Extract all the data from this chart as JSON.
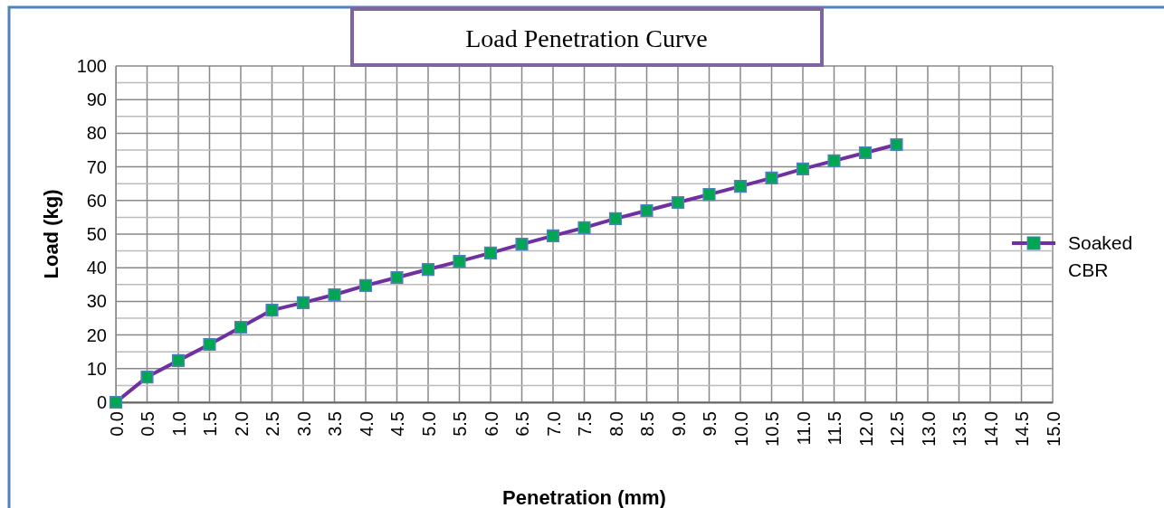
{
  "chart_data": {
    "type": "line",
    "title": "Load Penetration Curve",
    "xlabel": "Penetration (mm)",
    "ylabel": "Load (kg)",
    "x": [
      0,
      0.5,
      1,
      1.5,
      2,
      2.5,
      3,
      3.5,
      4,
      4.5,
      5,
      5.5,
      6,
      6.5,
      7,
      7.5,
      8,
      8.5,
      9,
      9.5,
      10,
      10.5,
      11,
      11.5,
      12,
      12.5
    ],
    "series": [
      {
        "name": "Soaked CBR",
        "color": "#7030a0",
        "values": [
          0,
          7.5,
          12.4,
          17.2,
          22.3,
          27.4,
          29.6,
          32,
          34.7,
          37.1,
          39.5,
          41.9,
          44.4,
          47,
          49.5,
          51.9,
          54.6,
          57,
          59.4,
          61.8,
          64.2,
          66.7,
          69.4,
          71.8,
          74.2,
          76.6
        ]
      }
    ],
    "xlim": [
      0,
      15
    ],
    "ylim": [
      0,
      100
    ],
    "xticks": [
      {
        "value": 0,
        "label": "0.0"
      },
      0.5,
      {
        "value": 1,
        "label": "1.0"
      },
      1.5,
      {
        "value": 2,
        "label": "2.0"
      },
      2.5,
      {
        "value": 3,
        "label": "3.0"
      },
      3.5,
      {
        "value": 4,
        "label": "4.0"
      },
      4.5,
      {
        "value": 5,
        "label": "5.0"
      },
      5.5,
      {
        "value": 6,
        "label": "6.0"
      },
      6.5,
      {
        "value": 7,
        "label": "7.0"
      },
      7.5,
      {
        "value": 8,
        "label": "8.0"
      },
      8.5,
      {
        "value": 9,
        "label": "9.0"
      },
      9.5,
      {
        "value": 10,
        "label": "10.0"
      },
      10.5,
      {
        "value": 11,
        "label": "11.0"
      },
      11.5,
      {
        "value": 12,
        "label": "12.0"
      },
      12.5,
      {
        "value": 13,
        "label": "13.0"
      },
      13.5,
      {
        "value": 14,
        "label": "14.0"
      },
      14.5,
      {
        "value": 15,
        "label": "15.0"
      }
    ],
    "yticks": [
      0,
      {
        "value": 5,
        "label": null
      },
      10,
      {
        "value": 15,
        "label": null
      },
      20,
      {
        "value": 25,
        "label": null
      },
      30,
      {
        "value": 35,
        "label": null
      },
      40,
      {
        "value": 45,
        "label": null
      },
      50,
      {
        "value": 55,
        "label": null
      },
      60,
      {
        "value": 65,
        "label": null
      },
      70,
      {
        "value": 75,
        "label": null
      },
      80,
      {
        "value": 85,
        "label": null
      },
      90,
      {
        "value": 95,
        "label": null
      },
      100
    ],
    "grid": true,
    "legend": "right",
    "marker": "square",
    "line_style": "solid"
  }
}
